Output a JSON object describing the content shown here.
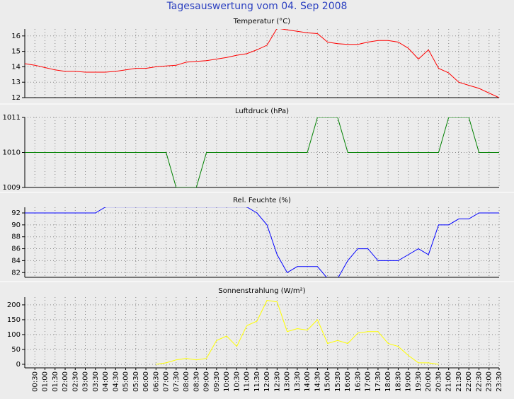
{
  "title": "Tagesauswertung vom 04. Sep 2008",
  "chart_data": [
    {
      "type": "line",
      "title": "Temperatur (°C)",
      "ylim": [
        12,
        16.45
      ],
      "yticks": [
        12,
        13,
        14,
        15,
        16
      ],
      "grid": true,
      "series": [
        {
          "name": "Temperatur",
          "color": "#ff0000",
          "values": [
            14.2,
            14.1,
            13.95,
            13.8,
            13.7,
            13.7,
            13.65,
            13.65,
            13.65,
            13.7,
            13.8,
            13.9,
            13.9,
            14.0,
            14.05,
            14.1,
            14.3,
            14.35,
            14.4,
            14.5,
            14.6,
            14.75,
            14.85,
            15.1,
            15.4,
            16.5,
            16.4,
            16.3,
            16.2,
            16.15,
            15.6,
            15.5,
            15.45,
            15.45,
            15.6,
            15.7,
            15.7,
            15.6,
            15.2,
            14.5,
            15.1,
            13.9,
            13.6,
            13.0,
            12.8,
            12.6,
            12.3,
            12.0
          ]
        }
      ]
    },
    {
      "type": "line",
      "title": "Luftdruck (hPa)",
      "ylim": [
        1009,
        1011
      ],
      "yticks": [
        1009,
        1010,
        1011
      ],
      "grid": true,
      "series": [
        {
          "name": "Luftdruck",
          "color": "#008000",
          "values": [
            1010,
            1010,
            1010,
            1010,
            1010,
            1010,
            1010,
            1010,
            1010,
            1010,
            1010,
            1010,
            1010,
            1010,
            1010,
            1009,
            1009,
            1009,
            1010,
            1010,
            1010,
            1010,
            1010,
            1010,
            1010,
            1010,
            1010,
            1010,
            1010,
            1011,
            1011,
            1011,
            1010,
            1010,
            1010,
            1010,
            1010,
            1010,
            1010,
            1010,
            1010,
            1010,
            1011,
            1011,
            1011,
            1010,
            1010,
            1010
          ]
        }
      ]
    },
    {
      "type": "line",
      "title": "Rel. Feuchte (%)",
      "ylim": [
        81.2,
        92.95
      ],
      "yticks": [
        82,
        84,
        86,
        88,
        90,
        92
      ],
      "grid": true,
      "series": [
        {
          "name": "Rel. Feuchte",
          "color": "#0000ff",
          "values": [
            92,
            92,
            92,
            92,
            92,
            92,
            92,
            92,
            93,
            93,
            93,
            93,
            93,
            93,
            93,
            93,
            93,
            93,
            93,
            93,
            93,
            93,
            93,
            92,
            90,
            85,
            82,
            83,
            83,
            83,
            81,
            81,
            84,
            86,
            86,
            84,
            84,
            84,
            85,
            86,
            85,
            90,
            90,
            91,
            91,
            92,
            92,
            92
          ]
        }
      ]
    },
    {
      "type": "line",
      "title": "Sonnenstrahlung (W/m²)",
      "ylim": [
        -12,
        226
      ],
      "yticks": [
        0,
        50,
        100,
        150,
        200
      ],
      "grid": true,
      "categories": [
        null,
        "00:30",
        "01:00",
        "01:30",
        "02:00",
        "02:30",
        "03:00",
        "03:30",
        "04:00",
        "04:30",
        "05:00",
        "05:30",
        "06:00",
        "06:30",
        "07:00",
        "07:30",
        "08:00",
        "08:30",
        "09:00",
        "09:30",
        "10:00",
        "10:30",
        "11:00",
        "11:30",
        "12:00",
        "12:30",
        "13:00",
        "13:30",
        "14:00",
        "14:30",
        "15:00",
        "15:30",
        "16:00",
        "16:30",
        "17:00",
        "17:30",
        "18:00",
        "18:30",
        "19:00",
        "19:30",
        "20:00",
        "20:30",
        "21:00",
        "21:30",
        "22:00",
        "22:30",
        "23:00",
        "23:30"
      ],
      "series": [
        {
          "name": "Sonnenstrahlung",
          "color": "#ffff00",
          "values": [
            null,
            null,
            null,
            null,
            null,
            null,
            null,
            null,
            null,
            null,
            null,
            null,
            null,
            0,
            5,
            15,
            20,
            15,
            20,
            80,
            95,
            60,
            130,
            145,
            215,
            210,
            110,
            120,
            115,
            150,
            70,
            80,
            70,
            105,
            110,
            110,
            70,
            60,
            30,
            5,
            5,
            0,
            null,
            null,
            null,
            null,
            null,
            null
          ]
        }
      ]
    }
  ]
}
